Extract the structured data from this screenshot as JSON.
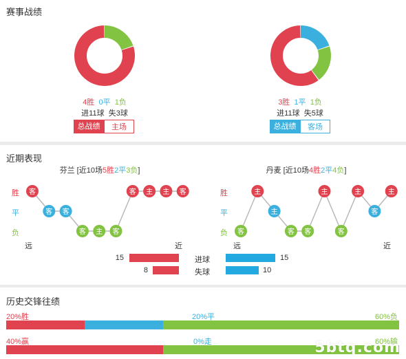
{
  "colors": {
    "win": "#e0434f",
    "draw": "#3bb0de",
    "loss": "#82c341"
  },
  "overall": {
    "title": "赛事战绩",
    "home": {
      "win": "4胜",
      "draw": "0平",
      "loss": "1负",
      "goals": "进11球  失3球",
      "tab_active": "总战绩",
      "tab_other": "主场",
      "record": {
        "win": 4,
        "draw": 0,
        "loss": 1
      }
    },
    "away": {
      "win": "3胜",
      "draw": "1平",
      "loss": "1负",
      "goals": "进11球  失5球",
      "tab_active": "总战绩",
      "tab_other": "客场",
      "record": {
        "win": 3,
        "draw": 1,
        "loss": 1
      }
    }
  },
  "recent": {
    "title": "近期表现",
    "y_labels": {
      "win": "胜",
      "draw": "平",
      "loss": "负"
    },
    "x_labels": {
      "far": "远",
      "near": "近"
    },
    "home": {
      "team": "芬兰",
      "summary_pre": " [近10场",
      "win": "5胜",
      "draw": "2平",
      "loss": "3负",
      "summary_post": "]",
      "results": [
        {
          "r": "W",
          "v": "客"
        },
        {
          "r": "D",
          "v": "客"
        },
        {
          "r": "D",
          "v": "客"
        },
        {
          "r": "L",
          "v": "客"
        },
        {
          "r": "L",
          "v": "主"
        },
        {
          "r": "L",
          "v": "客"
        },
        {
          "r": "W",
          "v": "客"
        },
        {
          "r": "W",
          "v": "主"
        },
        {
          "r": "W",
          "v": "主"
        },
        {
          "r": "W",
          "v": "客"
        }
      ]
    },
    "away": {
      "team": "丹麦",
      "summary_pre": " [近10场",
      "win": "4胜",
      "draw": "2平",
      "loss": "4负",
      "summary_post": "]",
      "results": [
        {
          "r": "L",
          "v": "客"
        },
        {
          "r": "W",
          "v": "主"
        },
        {
          "r": "D",
          "v": "主"
        },
        {
          "r": "L",
          "v": "客"
        },
        {
          "r": "L",
          "v": "客"
        },
        {
          "r": "W",
          "v": "主"
        },
        {
          "r": "L",
          "v": "客"
        },
        {
          "r": "W",
          "v": "主"
        },
        {
          "r": "D",
          "v": "客"
        },
        {
          "r": "W",
          "v": "主"
        }
      ]
    },
    "stats": [
      {
        "label": "进球",
        "home": 15,
        "away": 15,
        "home_text": "15",
        "away_text": "15"
      },
      {
        "label": "失球",
        "home": 8,
        "away": 10,
        "home_text": "8",
        "away_text": "10"
      }
    ],
    "stats_max": 15
  },
  "history": {
    "title": "历史交锋往绩",
    "row1": {
      "left": "20%胜",
      "mid": "20%平",
      "right": "60%负",
      "a": 20,
      "b": 20,
      "c": 60
    },
    "row2": {
      "left": "40%赢",
      "mid": "0%走",
      "right": "60%输",
      "a": 40,
      "b": 0,
      "c": 60
    }
  },
  "watermark": "5btq.com"
}
